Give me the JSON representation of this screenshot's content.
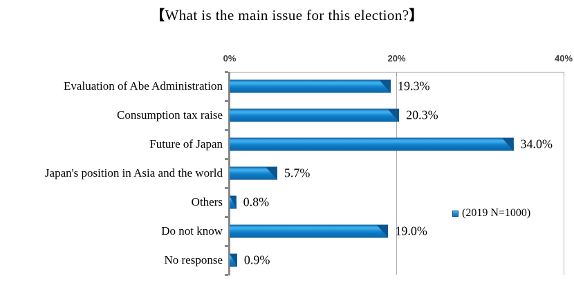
{
  "title": {
    "bracket_left": "【",
    "text": "What is the main issue for this election?",
    "bracket_right": "】",
    "full": "【What is the main issue for this election?】"
  },
  "chart_data": {
    "type": "bar",
    "orientation": "horizontal",
    "title": "【What is the main issue for this election?】",
    "categories": [
      "Evaluation of Abe Administration",
      "Consumption tax raise",
      "Future of Japan",
      "Japan's position in Asia and the world",
      "Others",
      "Do not know",
      "No response"
    ],
    "values": [
      19.3,
      20.3,
      34.0,
      5.7,
      0.8,
      19.0,
      0.9
    ],
    "value_labels": [
      "19.3%",
      "20.3%",
      "34.0%",
      "5.7%",
      "0.8%",
      "19.0%",
      "0.9%"
    ],
    "series": [
      {
        "name": "(2019 N=1000)",
        "values": [
          19.3,
          20.3,
          34.0,
          5.7,
          0.8,
          19.0,
          0.9
        ]
      }
    ],
    "xlim": [
      0,
      40
    ],
    "x_ticks": [
      {
        "value": 0,
        "label": "0%"
      },
      {
        "value": 20,
        "label": "20%"
      },
      {
        "value": 40,
        "label": "40%"
      }
    ],
    "axis_position": "top",
    "grid": "vertical gridlines at 20% and 40%",
    "legend": {
      "label": "(2019 N=1000)",
      "position": "right-middle"
    },
    "colors": {
      "bar_body": "#0e74bc",
      "bar_highlight": "#45b2f0",
      "bar_top_edge": "#0d5180",
      "bar_bevel": "#0b568f",
      "axis_line": "#898989",
      "gridline": "#b2b2b2",
      "tick_label": "#3f3f3f",
      "text": "#000000"
    }
  }
}
